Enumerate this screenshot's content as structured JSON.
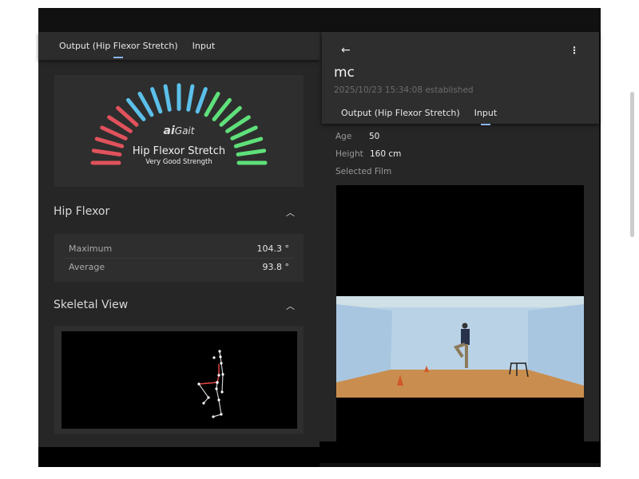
{
  "left_panel": {
    "tabs": [
      {
        "label": "Output (Hip Flexor Stretch)",
        "active": true
      },
      {
        "label": "Input",
        "active": false
      }
    ],
    "gauge": {
      "logo": "aiGait",
      "title": "Hip Flexor Stretch",
      "rating": "Very Good Strength",
      "segments": {
        "red": 6,
        "blue": 7,
        "green": 8
      },
      "colors": {
        "red": "#e0525c",
        "blue": "#5bc0ea",
        "green": "#5fe07a"
      }
    },
    "hip_flexor": {
      "title": "Hip Flexor",
      "rows": [
        {
          "label": "Maximum",
          "value": "104.3 °"
        },
        {
          "label": "Average",
          "value": "93.8 °"
        }
      ]
    },
    "skeletal_view": {
      "title": "Skeletal View"
    }
  },
  "right_panel": {
    "back_icon": "arrow-left-icon",
    "menu_icon": "more-vertical-icon",
    "name": "mc",
    "established": "2025/10/23 15:34:08 established",
    "tabs": [
      {
        "label": "Output (Hip Flexor Stretch)",
        "active": false
      },
      {
        "label": "Input",
        "active": true
      }
    ],
    "fields": [
      {
        "label": "Age",
        "value": "50"
      },
      {
        "label": "Height",
        "value": "160 cm"
      }
    ],
    "selected_film_label": "Selected Film"
  },
  "colors": {
    "accent": "#8ab4e8",
    "background": "#262626"
  }
}
